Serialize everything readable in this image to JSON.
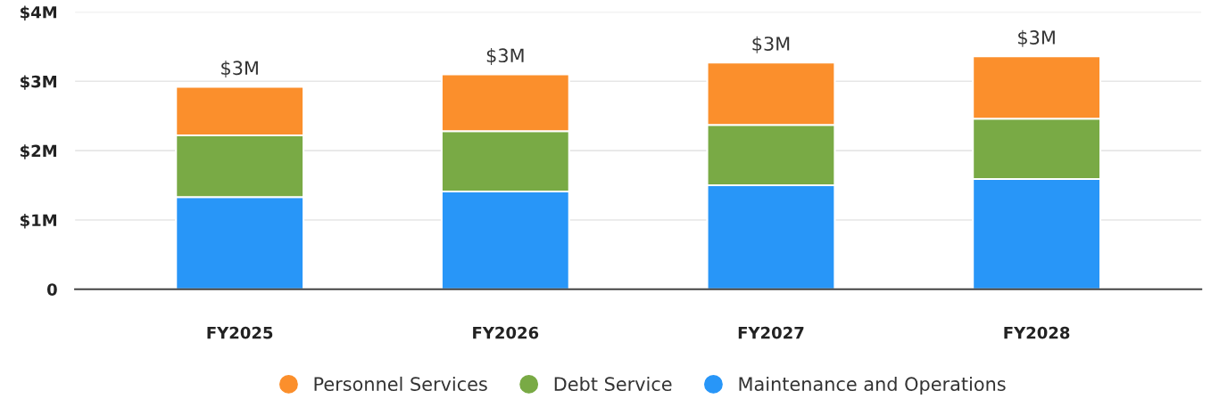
{
  "chart_data": {
    "type": "bar",
    "stacked": true,
    "categories": [
      "FY2025",
      "FY2026",
      "FY2027",
      "FY2028"
    ],
    "series": [
      {
        "name": "Maintenance and Operations",
        "color": "#2896f8",
        "values": [
          1.33,
          1.41,
          1.5,
          1.59
        ]
      },
      {
        "name": "Debt Service",
        "color": "#79aa45",
        "values": [
          0.89,
          0.87,
          0.87,
          0.87
        ]
      },
      {
        "name": "Personnel Services",
        "color": "#fb8f2c",
        "values": [
          0.7,
          0.82,
          0.9,
          0.9
        ]
      }
    ],
    "totals": [
      "$3M",
      "$3M",
      "$3M",
      "$3M"
    ],
    "ylim": [
      0,
      4
    ],
    "yticks": [
      0,
      {
        "value": 1,
        "label": "$1M"
      },
      {
        "value": 2,
        "label": "$2M"
      },
      {
        "value": 3,
        "label": "$3M"
      },
      {
        "value": 4,
        "label": "$4M"
      }
    ],
    "grid": "y",
    "legend": "bottom",
    "marker": "circle"
  }
}
